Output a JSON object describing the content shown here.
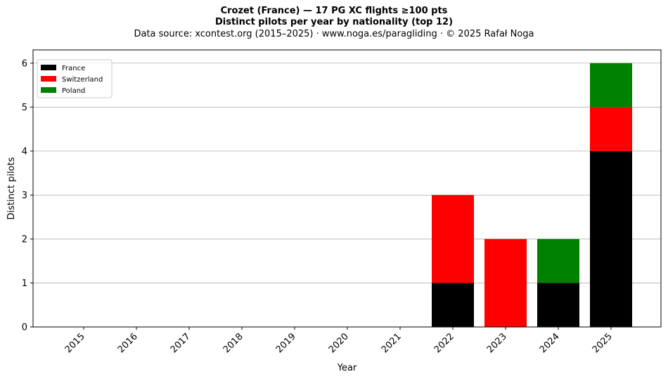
{
  "chart_data": {
    "type": "bar",
    "stacked": true,
    "title_line1": "Crozet (France)  —  17 PG XC flights ≥100 pts",
    "title_line2": "Distinct pilots per year by nationality (top 12)",
    "subtitle": "Data source: xcontest.org (2015–2025)  ·  www.noga.es/paragliding  ·  © 2025 Rafał Noga",
    "xlabel": "Year",
    "ylabel": "Distinct pilots",
    "categories": [
      "2015",
      "2016",
      "2017",
      "2018",
      "2019",
      "2020",
      "2021",
      "2022",
      "2023",
      "2024",
      "2025"
    ],
    "ylim": [
      0,
      6.3
    ],
    "yticks": [
      0,
      1,
      2,
      3,
      4,
      5,
      6
    ],
    "grid": "y",
    "legend_position": "top-left",
    "series": [
      {
        "name": "France",
        "color": "#000000",
        "values": [
          0,
          0,
          0,
          0,
          0,
          0,
          0,
          1,
          0,
          1,
          4
        ]
      },
      {
        "name": "Switzerland",
        "color": "#ff0000",
        "values": [
          0,
          0,
          0,
          0,
          0,
          0,
          0,
          2,
          2,
          0,
          1
        ]
      },
      {
        "name": "Poland",
        "color": "#008000",
        "values": [
          0,
          0,
          0,
          0,
          0,
          0,
          0,
          0,
          0,
          1,
          1
        ]
      }
    ]
  }
}
